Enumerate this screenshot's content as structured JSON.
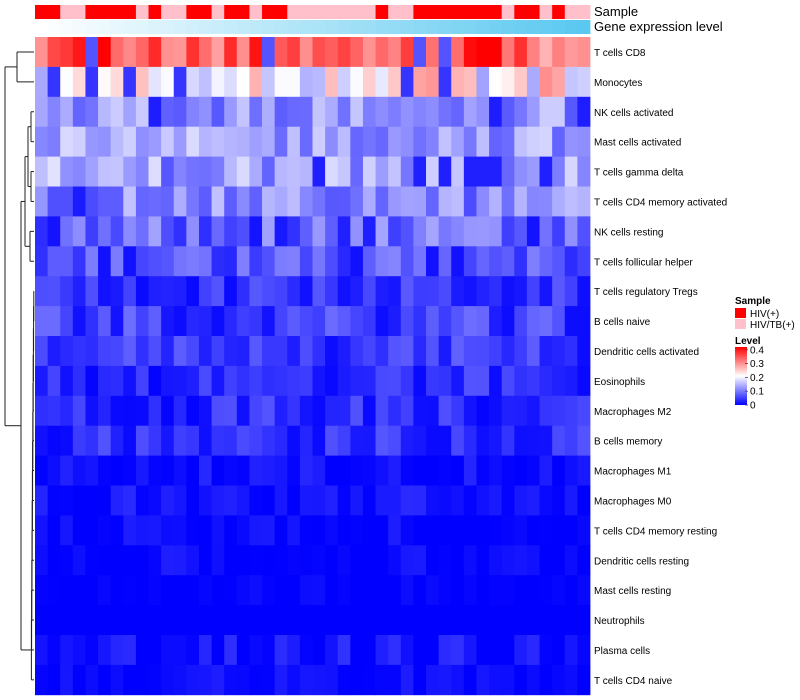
{
  "chart_data": {
    "type": "heatmap",
    "annotation_tracks": [
      {
        "name": "Sample",
        "categories": [
          "HIV(+)",
          "HIV/TB(+)"
        ]
      },
      {
        "name": "Gene expression level",
        "style": "gradient",
        "from": "#ffffff",
        "to": "#5ac8f0"
      }
    ],
    "sample_groups": [
      1,
      1,
      0,
      0,
      1,
      1,
      1,
      1,
      0,
      1,
      0,
      0,
      1,
      1,
      0,
      1,
      1,
      0,
      1,
      1,
      0,
      0,
      0,
      0,
      0,
      0,
      0,
      1,
      0,
      0,
      1,
      1,
      1,
      1,
      1,
      1,
      1,
      0,
      1,
      1,
      0,
      1,
      0,
      0
    ],
    "rows": [
      "T cells CD8",
      "Monocytes",
      "NK cells activated",
      "Mast cells activated",
      "T cells gamma delta",
      "T cells CD4 memory activated",
      "NK cells resting",
      "T cells follicular helper",
      "T cells regulatory  Tregs",
      "B cells naive",
      "Dendritic cells activated",
      "Eosinophils",
      "Macrophages M2",
      "B cells memory",
      "Macrophages M1",
      "Macrophages M0",
      "T cells CD4 memory resting",
      "Dendritic cells resting",
      "Mast cells resting",
      "Neutrophils",
      "Plasma cells",
      "T cells CD4 naive"
    ],
    "num_samples": 44,
    "row_base_levels": [
      0.34,
      0.22,
      0.12,
      0.13,
      0.13,
      0.11,
      0.08,
      0.07,
      0.04,
      0.05,
      0.05,
      0.035,
      0.035,
      0.04,
      0.012,
      0.012,
      0.005,
      0.005,
      0.002,
      0.0,
      0.012,
      0.006
    ],
    "row_spread": [
      0.07,
      0.09,
      0.05,
      0.05,
      0.06,
      0.05,
      0.06,
      0.04,
      0.035,
      0.04,
      0.03,
      0.035,
      0.035,
      0.035,
      0.02,
      0.025,
      0.02,
      0.02,
      0.01,
      0.0,
      0.03,
      0.02
    ],
    "legend": {
      "sample_title": "Sample",
      "level_title": "Level",
      "scale_ticks": [
        0.4,
        0.3,
        0.2,
        0.1,
        0
      ],
      "range": [
        0,
        0.42
      ],
      "position": "right"
    },
    "colors": {
      "low": "#0000ff",
      "mid": "#ffffff",
      "high": "#ff0000",
      "mid_value": 0.21,
      "group_hiv": "#ff0000",
      "group_hivtb": "#ffc0cb"
    },
    "dendrogram": "left"
  }
}
